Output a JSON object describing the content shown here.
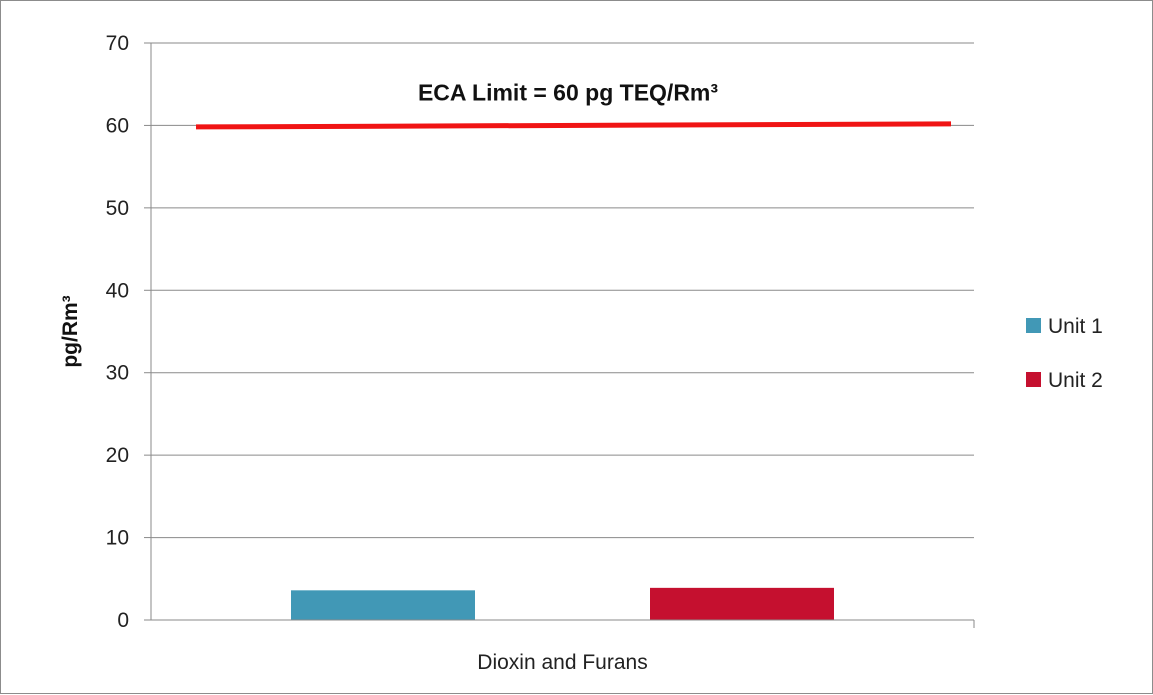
{
  "chart_data": {
    "type": "bar",
    "title": "",
    "xlabel": "",
    "ylabel": "pg/Rm³",
    "categories": [
      "Dioxin and Furans"
    ],
    "series": [
      {
        "name": "Unit 1",
        "values": [
          3.6
        ],
        "color": "#4198b6"
      },
      {
        "name": "Unit 2",
        "values": [
          3.9
        ],
        "color": "#c5102f"
      }
    ],
    "ylim": [
      0,
      70
    ],
    "yticks": [
      0,
      10,
      20,
      30,
      40,
      50,
      60,
      70
    ],
    "ytick_labels": [
      "0",
      "10",
      "20",
      "30",
      "40",
      "50",
      "60",
      "70"
    ],
    "grid": true,
    "legend_position": "right",
    "reference_line": {
      "value": 60,
      "label": "ECA Limit = 60 pg TEQ/Rm³",
      "color": "#f01414"
    }
  }
}
